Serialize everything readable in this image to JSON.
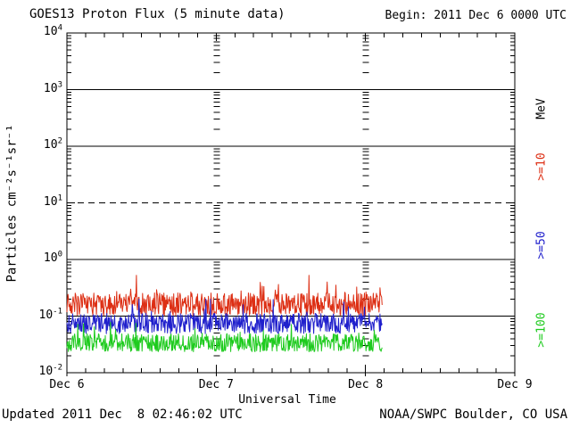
{
  "header": {
    "title": "GOES13 Proton Flux (5 minute data)",
    "begin": "Begin: 2011 Dec 6 0000 UTC"
  },
  "footer": {
    "updated": "Updated 2011 Dec  8 02:46:02 UTC",
    "source": "NOAA/SWPC Boulder, CO USA"
  },
  "axes": {
    "x_label": "Universal Time",
    "y_label": "Particles cm⁻²s⁻¹sr⁻¹",
    "x_tick_labels": [
      "Dec 6",
      "Dec 7",
      "Dec 8",
      "Dec 9"
    ],
    "y_tick_base": "10",
    "y_tick_exponents": [
      "4",
      "3",
      "2",
      "1",
      "0",
      "-1",
      "-2"
    ]
  },
  "legend": {
    "unit_label": "MeV",
    "unit_color": "#000000",
    "items": [
      {
        "label": ">=10",
        "color": "#dd2f14"
      },
      {
        "label": ">=50",
        "color": "#2020cc"
      },
      {
        "label": ">=100",
        "color": "#1ecb1e"
      }
    ]
  },
  "chart_data": {
    "type": "line",
    "title": "GOES13 Proton Flux (5 minute data)",
    "xlabel": "Universal Time",
    "ylabel": "Particles cm⁻²s⁻¹sr⁻¹",
    "x_axis": {
      "start": "2011 Dec 6 0000 UTC",
      "end": "2011 Dec 9 0000 UTC",
      "data_end": "2011 Dec 8 02:46 UTC",
      "tick_labels": [
        "Dec 6",
        "Dec 7",
        "Dec 8",
        "Dec 9"
      ],
      "minor_tick_hours": 3
    },
    "y_axis": {
      "scale": "log",
      "min": 0.01,
      "max": 10000,
      "decade_exponents": [
        4,
        3,
        2,
        1,
        0,
        -1,
        -2
      ]
    },
    "grid": {
      "solid_hlines_at": [
        1000,
        100,
        1,
        0.1
      ],
      "dashed_hline_at": 10,
      "vline_day_positions": [
        1,
        2
      ],
      "vline_day_labels": [
        "Dec 7",
        "Dec 8"
      ]
    },
    "end_day": 2.115,
    "points_per_day": 288,
    "series": [
      {
        "name": ">=10 MeV",
        "color": "#dd2f14",
        "approx_median": 0.16,
        "approx_range": [
          0.1,
          0.52
        ],
        "character": "noisy quiet-time background with frequent upward spikes",
        "gen": {
          "seed": 20111206,
          "base": -0.79,
          "amp": 0.2,
          "spike_prob": 0.06,
          "spike_amp": 0.45,
          "min": -1.0,
          "max": -0.28
        }
      },
      {
        "name": ">=50 MeV",
        "color": "#2020cc",
        "approx_median": 0.072,
        "approx_range": [
          0.04,
          0.2
        ],
        "character": "noisy quiet-time background",
        "gen": {
          "seed": 50,
          "base": -1.13,
          "amp": 0.18,
          "spike_prob": 0.05,
          "spike_amp": 0.38,
          "min": -1.48,
          "max": -0.7
        }
      },
      {
        "name": ">=100 MeV",
        "color": "#1ecb1e",
        "approx_median": 0.034,
        "approx_range": [
          0.019,
          0.08
        ],
        "character": "noisy quiet-time background",
        "gen": {
          "seed": 100,
          "base": -1.47,
          "amp": 0.16,
          "spike_prob": 0.04,
          "spike_amp": 0.32,
          "min": -1.72,
          "max": -1.08
        }
      }
    ]
  }
}
